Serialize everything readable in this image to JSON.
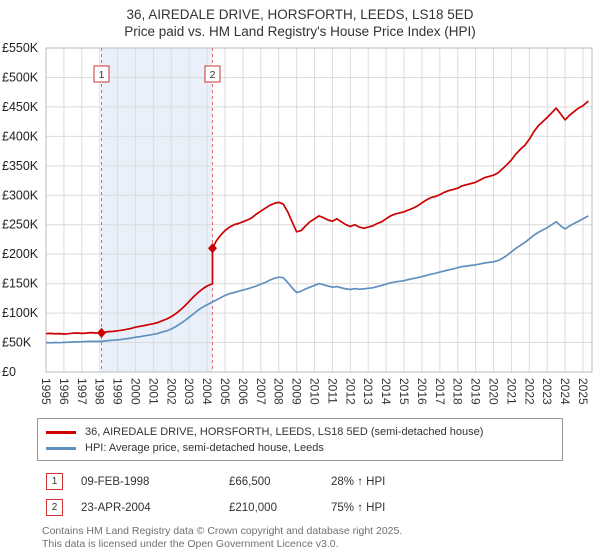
{
  "chart_data": {
    "type": "line",
    "title": "36, AIREDALE DRIVE, HORSFORTH, LEEDS, LS18 5ED",
    "subtitle": "Price paid vs. HM Land Registry's House Price Index (HPI)",
    "x_range": [
      1995,
      2025.5
    ],
    "ylim": [
      0,
      550000
    ],
    "y_tick_step": 50000,
    "y_tick_labels": [
      "£0",
      "£50K",
      "£100K",
      "£150K",
      "£200K",
      "£250K",
      "£300K",
      "£350K",
      "£400K",
      "£450K",
      "£500K",
      "£550K"
    ],
    "x_ticks": [
      1995,
      1996,
      1997,
      1998,
      1999,
      2000,
      2001,
      2002,
      2003,
      2004,
      2005,
      2006,
      2007,
      2008,
      2009,
      2010,
      2011,
      2012,
      2013,
      2014,
      2015,
      2016,
      2017,
      2018,
      2019,
      2020,
      2021,
      2022,
      2023,
      2024,
      2025
    ],
    "grid": true,
    "legend_position": "bottom",
    "colors": {
      "grid": "#dcdcdc",
      "frame": "#bbbbbb",
      "event": "#e06666",
      "event_box": "#cc3333"
    },
    "shaded_band": {
      "from": 1998.1,
      "to": 2004.3,
      "color": "#eaf0fa"
    },
    "series": [
      {
        "name": "36, AIREDALE DRIVE, HORSFORTH, LEEDS, LS18 5ED (semi-detached house)",
        "color": "#cc0000",
        "points": [
          [
            1995,
            65000
          ],
          [
            1995.25,
            65500
          ],
          [
            1995.5,
            64800
          ],
          [
            1995.75,
            65200
          ],
          [
            1996,
            64500
          ],
          [
            1996.25,
            65000
          ],
          [
            1996.5,
            65800
          ],
          [
            1996.75,
            66200
          ],
          [
            1997,
            65500
          ],
          [
            1997.25,
            66000
          ],
          [
            1997.5,
            66800
          ],
          [
            1997.75,
            66200
          ],
          [
            1998,
            66300
          ],
          [
            1998.1,
            66500
          ],
          [
            1998.25,
            67500
          ],
          [
            1998.5,
            68500
          ],
          [
            1998.75,
            69000
          ],
          [
            1999,
            70000
          ],
          [
            1999.25,
            71000
          ],
          [
            1999.5,
            72500
          ],
          [
            1999.75,
            74000
          ],
          [
            2000,
            76000
          ],
          [
            2000.25,
            77500
          ],
          [
            2000.5,
            79000
          ],
          [
            2000.75,
            80500
          ],
          [
            2001,
            82000
          ],
          [
            2001.25,
            84000
          ],
          [
            2001.5,
            87000
          ],
          [
            2001.75,
            90000
          ],
          [
            2002,
            94000
          ],
          [
            2002.25,
            99000
          ],
          [
            2002.5,
            105000
          ],
          [
            2002.75,
            112000
          ],
          [
            2003,
            120000
          ],
          [
            2003.25,
            128000
          ],
          [
            2003.5,
            135000
          ],
          [
            2003.75,
            141000
          ],
          [
            2004,
            146000
          ],
          [
            2004.3,
            150000
          ],
          [
            2004.3,
            210000
          ],
          [
            2004.5,
            222000
          ],
          [
            2004.75,
            232000
          ],
          [
            2005,
            240000
          ],
          [
            2005.25,
            246000
          ],
          [
            2005.5,
            250000
          ],
          [
            2005.75,
            252000
          ],
          [
            2006,
            255000
          ],
          [
            2006.25,
            258000
          ],
          [
            2006.5,
            262000
          ],
          [
            2006.75,
            268000
          ],
          [
            2007,
            273000
          ],
          [
            2007.25,
            278000
          ],
          [
            2007.5,
            283000
          ],
          [
            2007.75,
            286000
          ],
          [
            2008,
            288000
          ],
          [
            2008.25,
            285000
          ],
          [
            2008.5,
            272000
          ],
          [
            2008.75,
            255000
          ],
          [
            2009,
            238000
          ],
          [
            2009.25,
            240000
          ],
          [
            2009.5,
            248000
          ],
          [
            2009.75,
            255000
          ],
          [
            2010,
            260000
          ],
          [
            2010.25,
            265000
          ],
          [
            2010.5,
            262000
          ],
          [
            2010.75,
            258000
          ],
          [
            2011,
            256000
          ],
          [
            2011.25,
            260000
          ],
          [
            2011.5,
            255000
          ],
          [
            2011.75,
            250000
          ],
          [
            2012,
            247000
          ],
          [
            2012.25,
            250000
          ],
          [
            2012.5,
            246000
          ],
          [
            2012.75,
            244000
          ],
          [
            2013,
            246000
          ],
          [
            2013.25,
            248000
          ],
          [
            2013.5,
            252000
          ],
          [
            2013.75,
            255000
          ],
          [
            2014,
            260000
          ],
          [
            2014.25,
            265000
          ],
          [
            2014.5,
            268000
          ],
          [
            2014.75,
            270000
          ],
          [
            2015,
            272000
          ],
          [
            2015.25,
            275000
          ],
          [
            2015.5,
            278000
          ],
          [
            2015.75,
            282000
          ],
          [
            2016,
            287000
          ],
          [
            2016.25,
            292000
          ],
          [
            2016.5,
            296000
          ],
          [
            2016.75,
            298000
          ],
          [
            2017,
            301000
          ],
          [
            2017.25,
            305000
          ],
          [
            2017.5,
            308000
          ],
          [
            2017.75,
            310000
          ],
          [
            2018,
            312000
          ],
          [
            2018.25,
            316000
          ],
          [
            2018.5,
            318000
          ],
          [
            2018.75,
            320000
          ],
          [
            2019,
            322000
          ],
          [
            2019.25,
            326000
          ],
          [
            2019.5,
            330000
          ],
          [
            2019.75,
            332000
          ],
          [
            2020,
            334000
          ],
          [
            2020.25,
            338000
          ],
          [
            2020.5,
            345000
          ],
          [
            2020.75,
            352000
          ],
          [
            2021,
            360000
          ],
          [
            2021.25,
            370000
          ],
          [
            2021.5,
            378000
          ],
          [
            2021.75,
            385000
          ],
          [
            2022,
            395000
          ],
          [
            2022.25,
            408000
          ],
          [
            2022.5,
            418000
          ],
          [
            2022.75,
            425000
          ],
          [
            2023,
            432000
          ],
          [
            2023.25,
            440000
          ],
          [
            2023.5,
            448000
          ],
          [
            2023.75,
            438000
          ],
          [
            2024,
            428000
          ],
          [
            2024.25,
            436000
          ],
          [
            2024.5,
            442000
          ],
          [
            2024.75,
            448000
          ],
          [
            2025,
            452000
          ],
          [
            2025.3,
            460000
          ]
        ]
      },
      {
        "name": "HPI: Average price, semi-detached house, Leeds",
        "color": "#6090c0",
        "points": [
          [
            1995,
            50000
          ],
          [
            1995.25,
            49500
          ],
          [
            1995.5,
            50000
          ],
          [
            1995.75,
            49800
          ],
          [
            1996,
            50200
          ],
          [
            1996.25,
            50500
          ],
          [
            1996.5,
            51000
          ],
          [
            1996.75,
            51200
          ],
          [
            1997,
            51500
          ],
          [
            1997.25,
            51800
          ],
          [
            1997.5,
            52000
          ],
          [
            1997.75,
            52000
          ],
          [
            1998,
            52000
          ],
          [
            1998.25,
            52500
          ],
          [
            1998.5,
            53500
          ],
          [
            1998.75,
            54000
          ],
          [
            1999,
            54500
          ],
          [
            1999.25,
            55500
          ],
          [
            1999.5,
            56500
          ],
          [
            1999.75,
            57500
          ],
          [
            2000,
            59000
          ],
          [
            2000.25,
            60000
          ],
          [
            2000.5,
            61500
          ],
          [
            2000.75,
            62500
          ],
          [
            2001,
            64000
          ],
          [
            2001.25,
            65500
          ],
          [
            2001.5,
            68000
          ],
          [
            2001.75,
            70000
          ],
          [
            2002,
            73000
          ],
          [
            2002.25,
            77000
          ],
          [
            2002.5,
            82000
          ],
          [
            2002.75,
            87000
          ],
          [
            2003,
            93000
          ],
          [
            2003.25,
            99000
          ],
          [
            2003.5,
            105000
          ],
          [
            2003.75,
            110000
          ],
          [
            2004,
            114000
          ],
          [
            2004.25,
            118000
          ],
          [
            2004.5,
            122000
          ],
          [
            2004.75,
            126000
          ],
          [
            2005,
            130000
          ],
          [
            2005.25,
            133000
          ],
          [
            2005.5,
            135000
          ],
          [
            2005.75,
            137000
          ],
          [
            2006,
            139000
          ],
          [
            2006.25,
            141000
          ],
          [
            2006.5,
            143500
          ],
          [
            2006.75,
            146000
          ],
          [
            2007,
            149000
          ],
          [
            2007.25,
            152000
          ],
          [
            2007.5,
            156000
          ],
          [
            2007.75,
            159000
          ],
          [
            2008,
            161000
          ],
          [
            2008.25,
            160000
          ],
          [
            2008.5,
            152000
          ],
          [
            2008.75,
            143000
          ],
          [
            2009,
            135000
          ],
          [
            2009.25,
            137000
          ],
          [
            2009.5,
            141000
          ],
          [
            2009.75,
            144000
          ],
          [
            2010,
            147000
          ],
          [
            2010.25,
            150000
          ],
          [
            2010.5,
            148000
          ],
          [
            2010.75,
            146000
          ],
          [
            2011,
            144000
          ],
          [
            2011.25,
            145000
          ],
          [
            2011.5,
            143000
          ],
          [
            2011.75,
            141000
          ],
          [
            2012,
            140000
          ],
          [
            2012.25,
            141500
          ],
          [
            2012.5,
            140500
          ],
          [
            2012.75,
            141000
          ],
          [
            2013,
            142000
          ],
          [
            2013.25,
            143000
          ],
          [
            2013.5,
            145000
          ],
          [
            2013.75,
            147000
          ],
          [
            2014,
            149000
          ],
          [
            2014.25,
            151500
          ],
          [
            2014.5,
            153000
          ],
          [
            2014.75,
            154000
          ],
          [
            2015,
            155000
          ],
          [
            2015.25,
            157000
          ],
          [
            2015.5,
            158500
          ],
          [
            2015.75,
            160000
          ],
          [
            2016,
            162000
          ],
          [
            2016.25,
            164000
          ],
          [
            2016.5,
            166000
          ],
          [
            2016.75,
            167500
          ],
          [
            2017,
            169500
          ],
          [
            2017.25,
            171500
          ],
          [
            2017.5,
            173500
          ],
          [
            2017.75,
            175000
          ],
          [
            2018,
            177000
          ],
          [
            2018.25,
            179000
          ],
          [
            2018.5,
            180000
          ],
          [
            2018.75,
            181000
          ],
          [
            2019,
            182000
          ],
          [
            2019.25,
            183500
          ],
          [
            2019.5,
            185000
          ],
          [
            2019.75,
            186000
          ],
          [
            2020,
            187000
          ],
          [
            2020.25,
            189000
          ],
          [
            2020.5,
            193000
          ],
          [
            2020.75,
            198000
          ],
          [
            2021,
            204000
          ],
          [
            2021.25,
            210000
          ],
          [
            2021.5,
            215000
          ],
          [
            2021.75,
            220000
          ],
          [
            2022,
            226000
          ],
          [
            2022.25,
            232000
          ],
          [
            2022.5,
            237000
          ],
          [
            2022.75,
            241000
          ],
          [
            2023,
            245000
          ],
          [
            2023.25,
            250000
          ],
          [
            2023.5,
            255000
          ],
          [
            2023.75,
            248000
          ],
          [
            2024,
            243000
          ],
          [
            2024.25,
            248000
          ],
          [
            2024.5,
            252000
          ],
          [
            2024.75,
            256000
          ],
          [
            2025,
            260000
          ],
          [
            2025.3,
            265000
          ]
        ]
      }
    ],
    "sales": [
      {
        "label": "1",
        "x": 1998.1,
        "y": 66500,
        "date": "09-FEB-1998",
        "price": "£66,500",
        "vs_hpi": "28% ↑ HPI"
      },
      {
        "label": "2",
        "x": 2004.3,
        "y": 210000,
        "date": "23-APR-2004",
        "price": "£210,000",
        "vs_hpi": "75% ↑ HPI"
      }
    ]
  },
  "footer": {
    "line1": "Contains HM Land Registry data © Crown copyright and database right 2025.",
    "line2": "This data is licensed under the Open Government Licence v3.0."
  }
}
